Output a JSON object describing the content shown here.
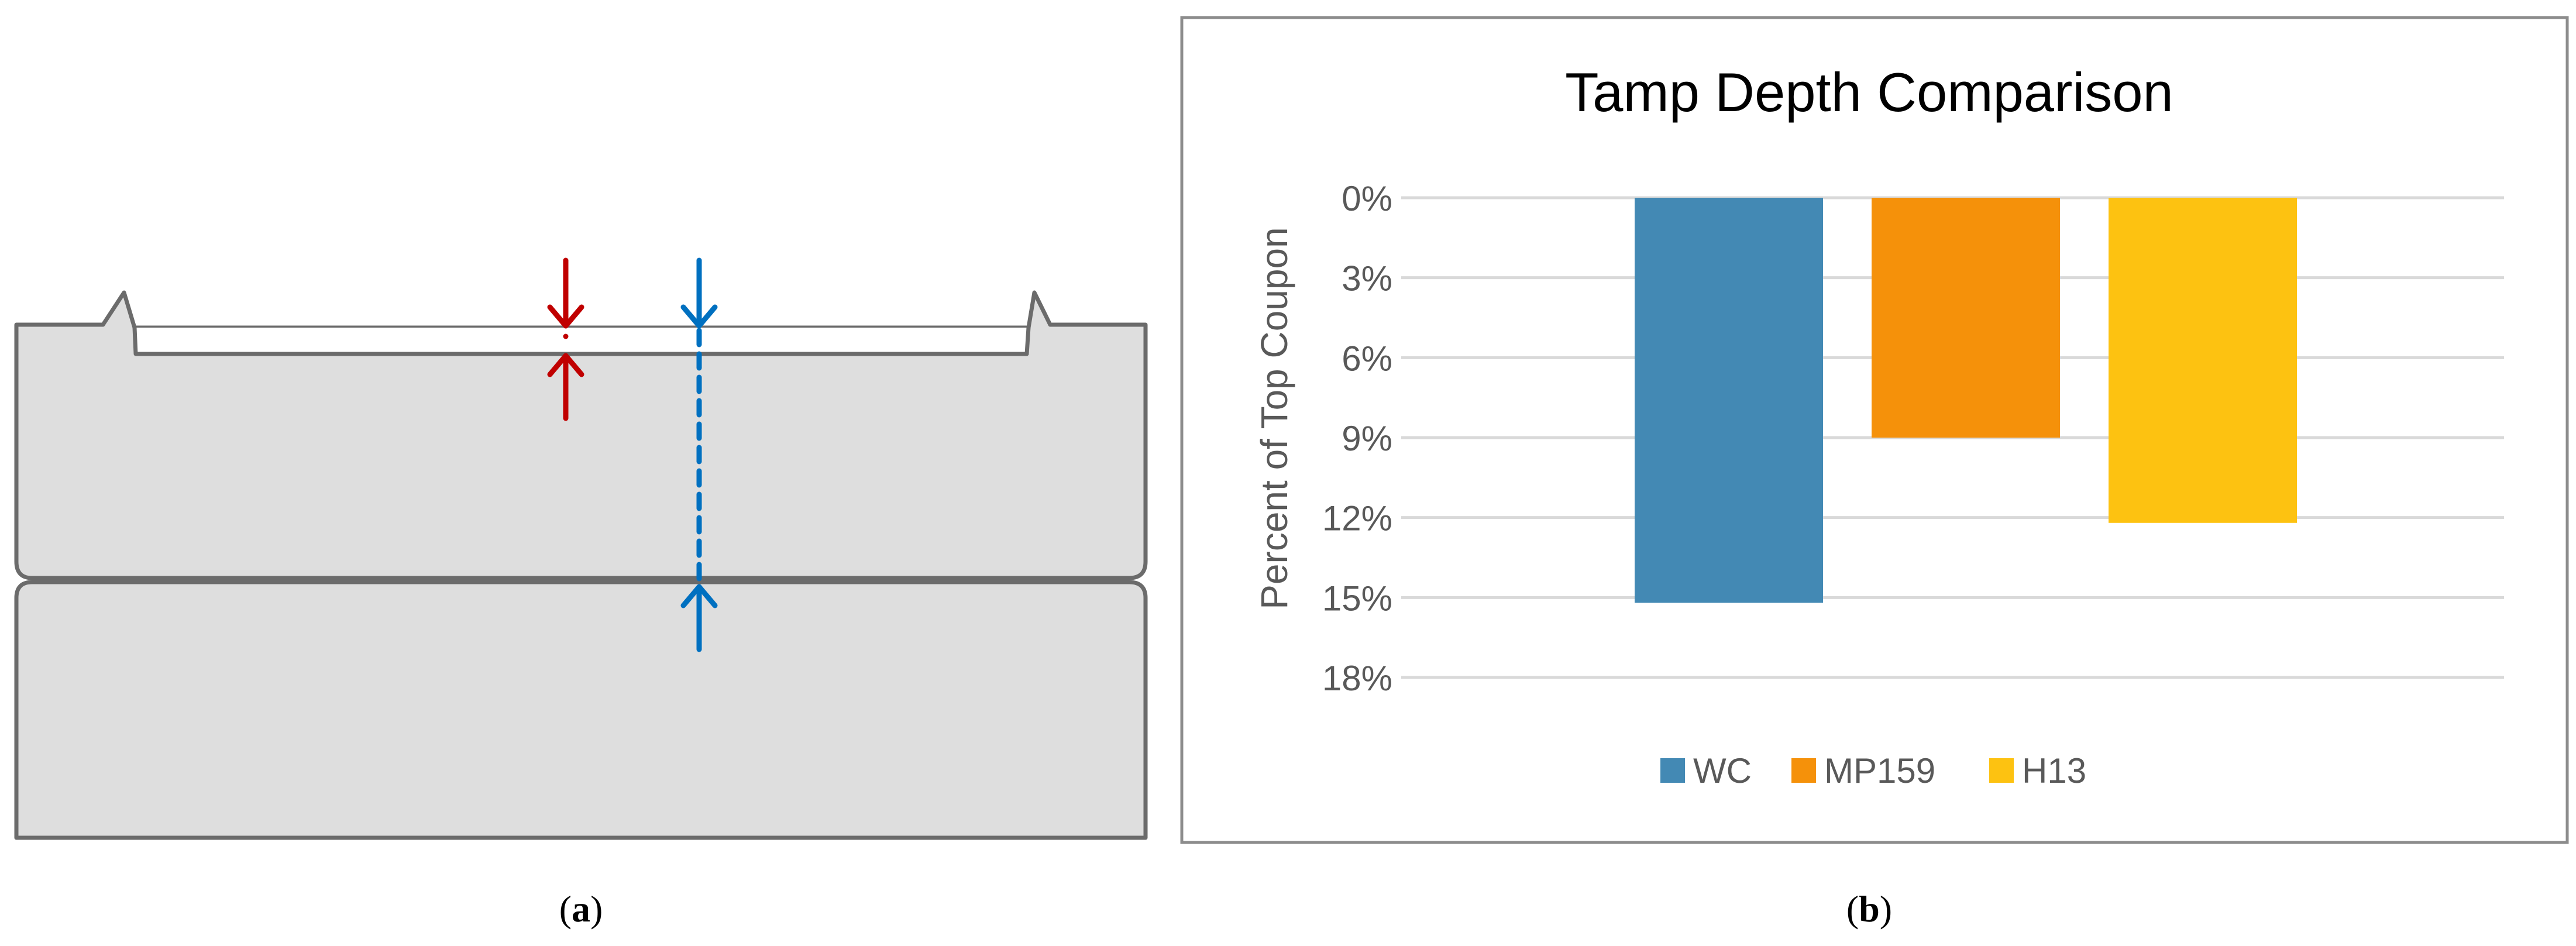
{
  "panels": {
    "a": {
      "label_open": "(",
      "label_letter": "a",
      "label_close": ")"
    },
    "b": {
      "label_open": "(",
      "label_letter": "b",
      "label_close": ")"
    }
  },
  "diagram": {
    "colors": {
      "fill": "#dedede",
      "outline": "#6b6b6b",
      "marker_red": "#c00000",
      "marker_blue": "#0070c0"
    }
  },
  "chart_data": {
    "type": "bar",
    "title": "Tamp Depth Comparison",
    "xlabel": "",
    "ylabel": "Percent of Top Coupon",
    "y_inverted": true,
    "ylim": [
      0,
      0.18
    ],
    "yticks": [
      0,
      0.03,
      0.06,
      0.09,
      0.12,
      0.15,
      0.18
    ],
    "ytick_labels": [
      "0%",
      "3%",
      "6%",
      "9%",
      "12%",
      "15%",
      "18%"
    ],
    "grid": true,
    "legend_position": "bottom",
    "series": [
      {
        "name": "WC",
        "value": 0.152,
        "color": "#4389b4"
      },
      {
        "name": "MP159",
        "value": 0.09,
        "color": "#f5910a"
      },
      {
        "name": "H13",
        "value": 0.122,
        "color": "#fdc211"
      }
    ]
  }
}
